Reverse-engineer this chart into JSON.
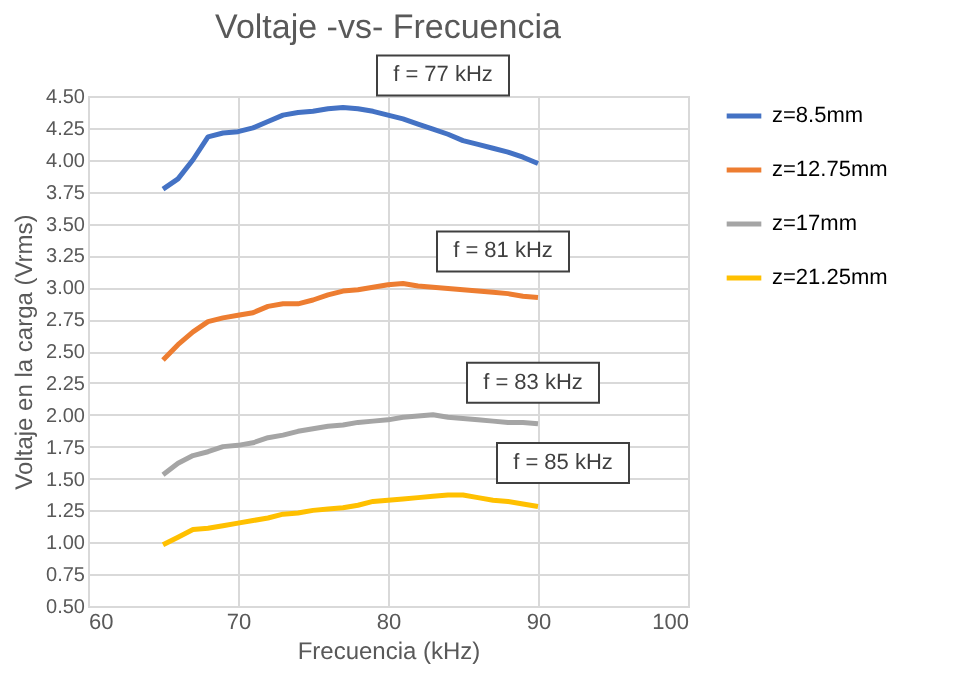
{
  "chart_data": {
    "type": "line",
    "title": "Voltaje -vs- Frecuencia",
    "xlabel": "Frecuencia (kHz)",
    "ylabel": "Voltaje en la carga (Vrms)",
    "x": [
      65,
      66,
      67,
      68,
      69,
      70,
      71,
      72,
      73,
      74,
      75,
      76,
      77,
      78,
      79,
      80,
      81,
      82,
      83,
      84,
      85,
      86,
      87,
      88,
      89,
      90
    ],
    "series": [
      {
        "name": "z=8.5mm",
        "color": "#4472c4",
        "values": [
          3.77,
          3.85,
          4.0,
          4.18,
          4.21,
          4.22,
          4.25,
          4.3,
          4.35,
          4.37,
          4.38,
          4.4,
          4.41,
          4.4,
          4.38,
          4.35,
          4.32,
          4.28,
          4.24,
          4.2,
          4.15,
          4.12,
          4.09,
          4.06,
          4.02,
          3.97
        ]
      },
      {
        "name": "z=12.75mm",
        "color": "#ed7d31",
        "values": [
          2.43,
          2.55,
          2.65,
          2.73,
          2.76,
          2.78,
          2.8,
          2.85,
          2.87,
          2.87,
          2.9,
          2.94,
          2.97,
          2.98,
          3.0,
          3.02,
          3.03,
          3.01,
          3.0,
          2.99,
          2.98,
          2.97,
          2.96,
          2.95,
          2.93,
          2.92
        ]
      },
      {
        "name": "z=17mm",
        "color": "#a5a5a5",
        "values": [
          1.53,
          1.62,
          1.68,
          1.71,
          1.75,
          1.76,
          1.78,
          1.82,
          1.84,
          1.87,
          1.89,
          1.91,
          1.92,
          1.94,
          1.95,
          1.96,
          1.98,
          1.99,
          2.0,
          1.98,
          1.97,
          1.96,
          1.95,
          1.94,
          1.94,
          1.93
        ]
      },
      {
        "name": "z=21.25mm",
        "color": "#ffc000",
        "values": [
          0.98,
          1.04,
          1.1,
          1.11,
          1.13,
          1.15,
          1.17,
          1.19,
          1.22,
          1.23,
          1.25,
          1.26,
          1.27,
          1.29,
          1.32,
          1.33,
          1.34,
          1.35,
          1.36,
          1.37,
          1.37,
          1.35,
          1.33,
          1.32,
          1.3,
          1.28
        ]
      }
    ],
    "xlim": [
      60,
      100
    ],
    "xticks": [
      60,
      70,
      80,
      90,
      100
    ],
    "ylim": [
      0.5,
      4.5
    ],
    "yticks": [
      {
        "value": 0.5,
        "label": "0.50"
      },
      {
        "value": 0.75,
        "label": "0.75"
      },
      {
        "value": 1.0,
        "label": "1.00"
      },
      {
        "value": 1.25,
        "label": "1.25"
      },
      {
        "value": 1.5,
        "label": "1.50"
      },
      {
        "value": 1.75,
        "label": "1.75"
      },
      {
        "value": 2.0,
        "label": "2.00"
      },
      {
        "value": 2.25,
        "label": "2.25"
      },
      {
        "value": 2.5,
        "label": "2.50"
      },
      {
        "value": 2.75,
        "label": "2.75"
      },
      {
        "value": 3.0,
        "label": "3.00"
      },
      {
        "value": 3.25,
        "label": "3.25"
      },
      {
        "value": 3.5,
        "label": "3.50"
      },
      {
        "value": 3.75,
        "label": "3.75"
      },
      {
        "value": 4.0,
        "label": "4.00"
      },
      {
        "value": 4.25,
        "label": "4.25"
      },
      {
        "value": 4.5,
        "label": "4.50"
      }
    ],
    "annotations": [
      {
        "text": "f = 77 kHz",
        "x": 77,
        "y": 4.41
      },
      {
        "text": "f =  81 kHz",
        "x": 81,
        "y": 3.03
      },
      {
        "text": "f =  83 kHz",
        "x": 83,
        "y": 2.0
      },
      {
        "text": "f =  85 kHz",
        "x": 85,
        "y": 1.37
      }
    ],
    "grid": true,
    "legend": "right",
    "line_style": "solid",
    "marker": "none"
  }
}
